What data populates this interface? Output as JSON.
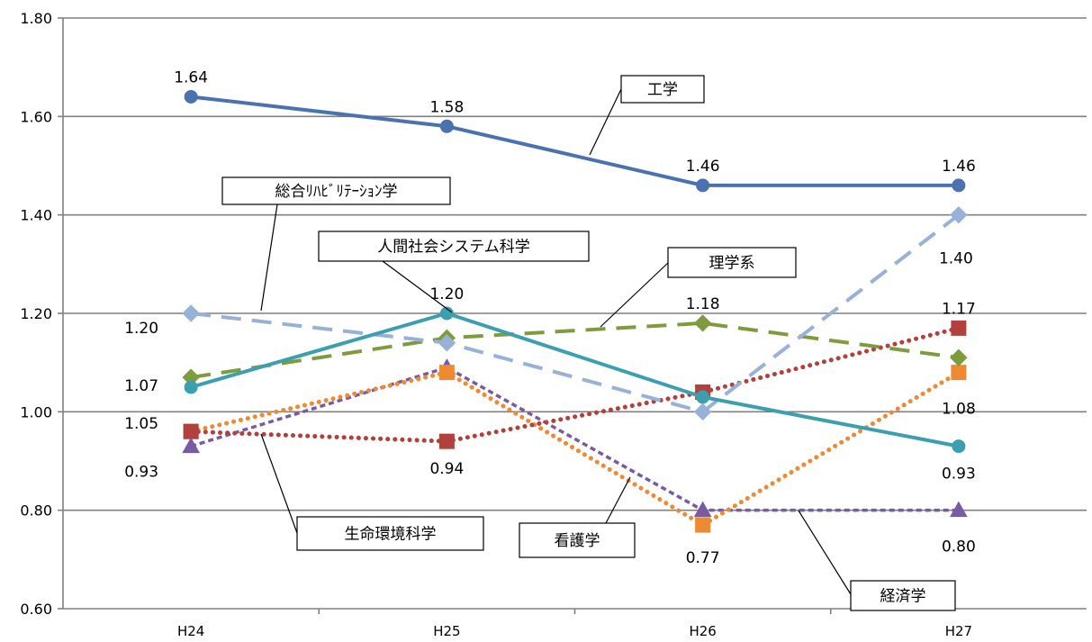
{
  "chart_data": {
    "type": "line",
    "categories": [
      "H24",
      "H25",
      "H26",
      "H27"
    ],
    "ylim": [
      0.6,
      1.8
    ],
    "yticks": [
      "0.60",
      "0.80",
      "1.00",
      "1.20",
      "1.40",
      "1.60",
      "1.80"
    ],
    "grid": true,
    "series": [
      {
        "name": "工学",
        "values": [
          1.64,
          1.58,
          1.46,
          1.46
        ],
        "color": "#4A72B0",
        "dash": "solid",
        "marker": "circle",
        "labels": [
          "1.64",
          "1.58",
          "1.46",
          "1.46"
        ]
      },
      {
        "name": "総合ﾘﾊﾋﾞﾘﾃｰｼｮﾝ学",
        "values": [
          1.2,
          1.14,
          1.0,
          1.4
        ],
        "color": "#97B1D9",
        "dash": "dash",
        "marker": "diamond",
        "labels": [
          "1.20",
          "",
          "",
          "1.40"
        ]
      },
      {
        "name": "人間社会システム科学",
        "values": [
          1.05,
          1.2,
          1.03,
          0.93
        ],
        "color": "#3B9FB0",
        "dash": "solid",
        "marker": "circle",
        "labels": [
          "1.05",
          "1.20",
          "",
          "0.93"
        ]
      },
      {
        "name": "理学系",
        "values": [
          1.07,
          1.15,
          1.18,
          1.11
        ],
        "color": "#7E9C3E",
        "dash": "dash",
        "marker": "diamond",
        "labels": [
          "1.07",
          "",
          "1.18",
          ""
        ]
      },
      {
        "name": "生命環境科学",
        "values": [
          0.96,
          0.94,
          1.04,
          1.17
        ],
        "color": "#B2403C",
        "dash": "dot",
        "marker": "square",
        "labels": [
          "",
          "0.94",
          "",
          "1.17"
        ]
      },
      {
        "name": "看護学",
        "values": [
          0.96,
          1.08,
          0.77,
          1.08
        ],
        "color": "#EE8A33",
        "dash": "dot",
        "marker": "square",
        "labels": [
          "",
          "",
          "0.77",
          "1.08"
        ]
      },
      {
        "name": "経済学",
        "values": [
          0.93,
          1.09,
          0.8,
          0.8
        ],
        "color": "#7A5BA3",
        "dash": "shortdash",
        "marker": "triangle",
        "labels": [
          "0.93",
          "",
          "",
          "0.80"
        ]
      }
    ]
  }
}
